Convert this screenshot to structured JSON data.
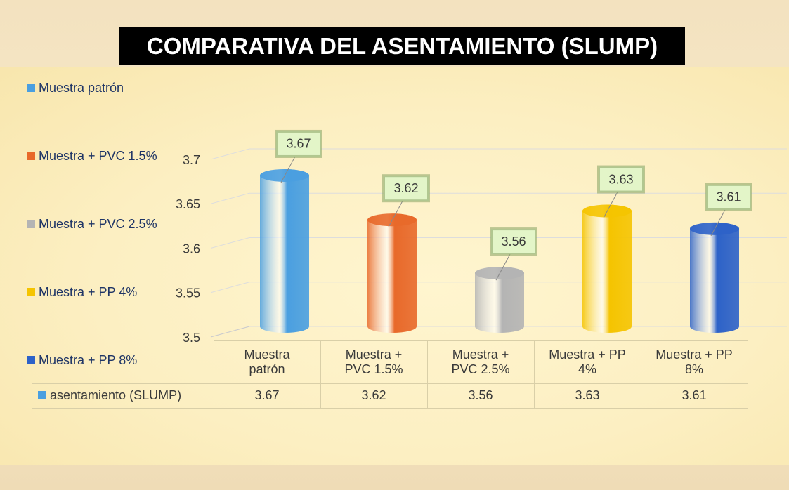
{
  "chart_data": {
    "type": "bar",
    "title": "COMPARATIVA DEL ASENTAMIENTO (SLUMP)",
    "categories": [
      "Muestra patrón",
      "Muestra + PVC 1.5%",
      "Muestra + PVC 2.5%",
      "Muestra + PP 4%",
      "Muestra + PP 8%"
    ],
    "series": [
      {
        "name": "asentamiento (SLUMP)",
        "color": "#4a9fe0",
        "colors": [
          "#4a9fe0",
          "#e8692a",
          "#b4b4b4",
          "#f5c400",
          "#2d62c8"
        ],
        "values": [
          3.67,
          3.62,
          3.56,
          3.63,
          3.61
        ]
      }
    ],
    "ylim": [
      3.5,
      3.7
    ],
    "yticks": [
      3.5,
      3.55,
      3.6,
      3.65,
      3.7
    ],
    "grid": true,
    "legend": "left",
    "data_table": true
  }
}
